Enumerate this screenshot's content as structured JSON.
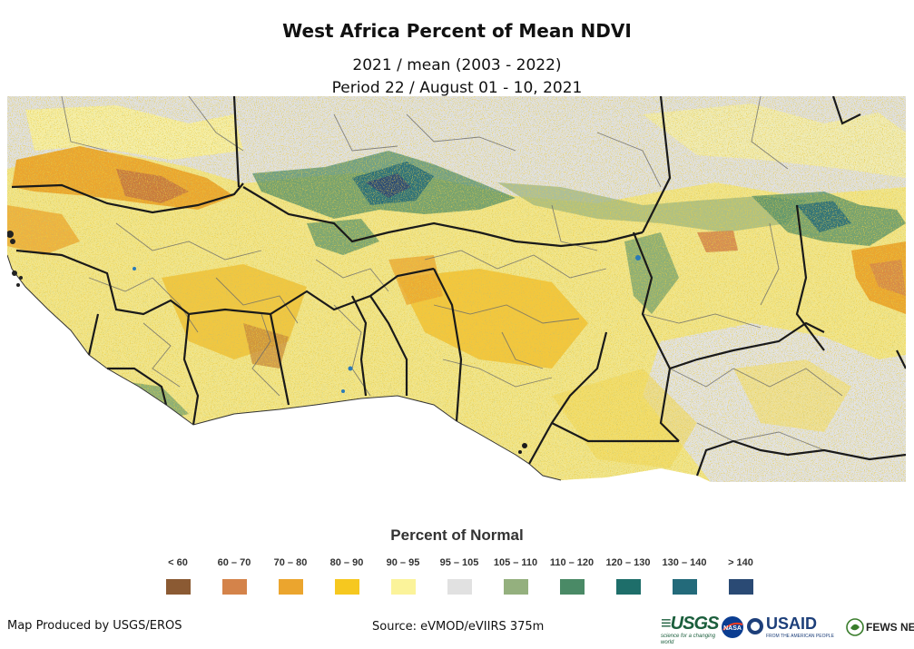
{
  "title": "West Africa Percent of Mean NDVI",
  "subtitle_line1": "2021 / mean (2003 - 2022)",
  "subtitle_line2": "Period 22 / August 01 - 10, 2021",
  "legend": {
    "title": "Percent of Normal",
    "items": [
      {
        "label": "< 60",
        "color": "#8b5a33"
      },
      {
        "label": "60 – 70",
        "color": "#d4834a"
      },
      {
        "label": "70 – 80",
        "color": "#eba52e"
      },
      {
        "label": "80 – 90",
        "color": "#f6c81f"
      },
      {
        "label": "90 – 95",
        "color": "#fbf39a"
      },
      {
        "label": "95 – 105",
        "color": "#e1e1e1"
      },
      {
        "label": "105 – 110",
        "color": "#94b07e"
      },
      {
        "label": "110 – 120",
        "color": "#4a8a66"
      },
      {
        "label": "120 – 130",
        "color": "#1e6e6a"
      },
      {
        "label": "130 – 140",
        "color": "#236a7a"
      },
      {
        "label": "> 140",
        "color": "#2a4a74"
      }
    ]
  },
  "footer": {
    "produced_by": "Map Produced by USGS/EROS",
    "source": "Source: eVMOD/eVIIRS 375m"
  },
  "logos": {
    "usgs": {
      "mark": "≡USGS",
      "tagline": "science for a changing world"
    },
    "nasa": {
      "mark": "NASA"
    },
    "usaid": {
      "mark": "USAID",
      "tagline": "FROM THE AMERICAN PEOPLE"
    },
    "fews": {
      "mark": "FEWS NET"
    }
  }
}
